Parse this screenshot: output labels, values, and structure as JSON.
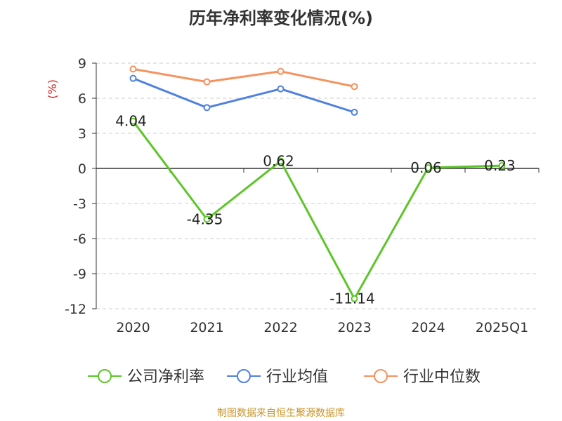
{
  "chart_data": {
    "type": "line",
    "title": "历年净利率变化情况(%)",
    "ylabel": "(%)",
    "xlabel": "",
    "categories": [
      "2020",
      "2021",
      "2022",
      "2023",
      "2024",
      "2025Q1"
    ],
    "ylim": [
      -12,
      9
    ],
    "yticks": [
      9,
      6,
      3,
      0,
      -3,
      -6,
      -9,
      -12
    ],
    "grid": true,
    "legend_position": "bottom",
    "series": [
      {
        "name": "公司净利率",
        "color": "#5cc628",
        "values": [
          4.04,
          -4.35,
          0.62,
          -11.14,
          0.06,
          0.23
        ],
        "labels": [
          "4.04",
          "-4.35",
          "0.62",
          "-11.14",
          "0.06",
          "0.23"
        ]
      },
      {
        "name": "行业均值",
        "color": "#4f81e0",
        "values": [
          7.7,
          5.2,
          6.8,
          4.8,
          null,
          null
        ]
      },
      {
        "name": "行业中位数",
        "color": "#f7915d",
        "values": [
          8.5,
          7.4,
          8.3,
          7.0,
          null,
          null
        ]
      }
    ]
  },
  "colors": {
    "ylabel": "#e02020",
    "footer": "#c8962c",
    "axis": "#333333",
    "grid": "#cccccc"
  },
  "footer": {
    "note": "制图数据来自恒生聚源数据库"
  }
}
